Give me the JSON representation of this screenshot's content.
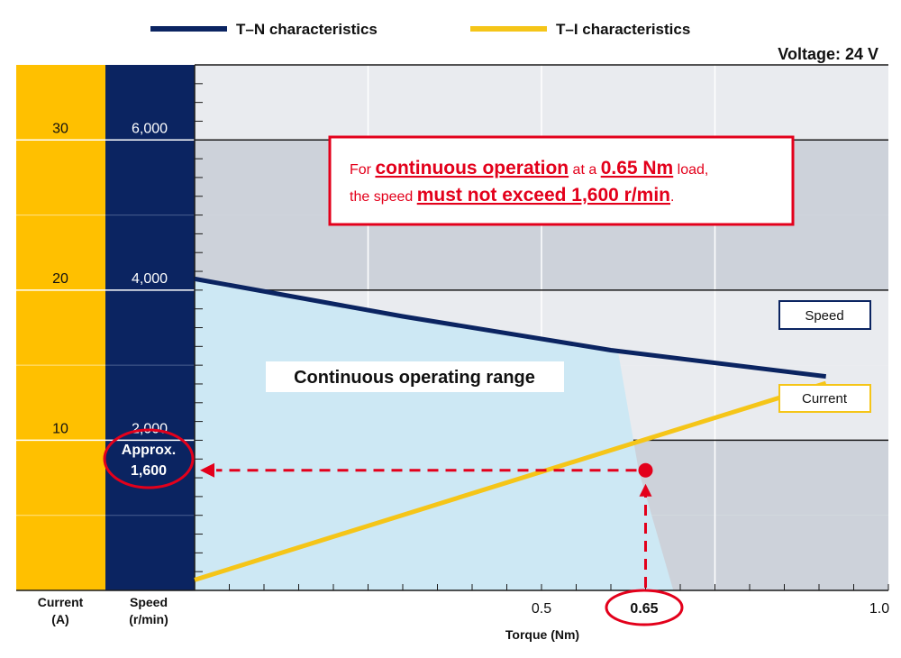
{
  "legend": {
    "tn_label": "T–N characteristics",
    "ti_label": "T–I characteristics"
  },
  "voltage_label": "Voltage: 24 V",
  "callout": {
    "prefix": "For ",
    "emphasis1": "continuous operation",
    "mid1": " at a ",
    "emphasis2": "0.65 Nm",
    "mid2": " load,",
    "line2_prefix": "the speed ",
    "emphasis3": "must not exceed 1,600 r/min",
    "line2_suffix": "."
  },
  "range_label": "Continuous operating range",
  "speed_box_label": "Speed",
  "current_box_label": "Current",
  "approx_label_line1": "Approx.",
  "approx_label_line2": "1,600",
  "highlight_torque_label": "0.65",
  "axis_titles": {
    "current_line1": "Current",
    "current_line2": "(A)",
    "speed_line1": "Speed",
    "speed_line2": "(r/min)",
    "torque": "Torque (Nm)"
  },
  "colors": {
    "navy": "#0b2461",
    "gold": "#f5c518",
    "red": "#e3001b",
    "range_fill": "#cde8f4",
    "band_dark": "#cdd2da",
    "band_light": "#e9ebef",
    "current_col": "#ffc000"
  },
  "chart_data": {
    "type": "line",
    "xlabel": "Torque (Nm)",
    "xlim": [
      0,
      1.0
    ],
    "x_tick_labels": [
      {
        "x": 0.5,
        "label": "0.5"
      },
      {
        "x": 1.0,
        "label": "1.0"
      }
    ],
    "y_speed_lim": [
      0,
      7000
    ],
    "y_speed_ticks": [
      {
        "v": 6000,
        "label": "6,000"
      },
      {
        "v": 4000,
        "label": "4,000"
      },
      {
        "v": 2000,
        "label": "2,000"
      }
    ],
    "y_current_lim": [
      0,
      35
    ],
    "y_current_ticks": [
      {
        "v": 30,
        "label": "30"
      },
      {
        "v": 20,
        "label": "20"
      },
      {
        "v": 10,
        "label": "10"
      }
    ],
    "series": [
      {
        "name": "T–N characteristics",
        "axis": "speed",
        "color": "#0b2461",
        "x": [
          0,
          0.3,
          0.6,
          0.91
        ],
        "y": [
          4150,
          3650,
          3200,
          2850
        ]
      },
      {
        "name": "T–I characteristics",
        "axis": "current",
        "color": "#f5c518",
        "x": [
          0,
          0.91
        ],
        "y": [
          0.7,
          13.8
        ]
      }
    ],
    "continuous_range_boundary": {
      "x": [
        0,
        0.61,
        0.64,
        0.69
      ],
      "y": [
        4150,
        3200,
        1600,
        0
      ]
    },
    "highlight_point": {
      "x": 0.65,
      "y": 1600
    }
  }
}
